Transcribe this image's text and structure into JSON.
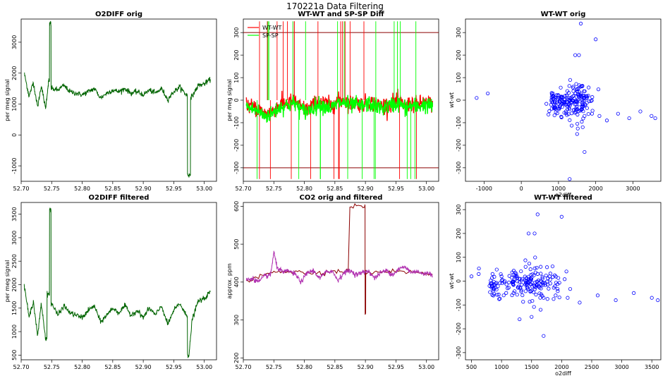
{
  "figure": {
    "title": "170221a   Data Filtering"
  },
  "chart_data": [
    {
      "id": "p1",
      "type": "line",
      "title": "O2DIFF orig",
      "xlabel": "",
      "ylabel": "per meg signal",
      "xlim": [
        52.7,
        53.02
      ],
      "ylim": [
        -1500,
        3750
      ],
      "xticks": [
        "52.70",
        "52.75",
        "52.80",
        "52.85",
        "52.90",
        "52.95",
        "53.00"
      ],
      "xtick_values": [
        52.7,
        52.75,
        52.8,
        52.85,
        52.9,
        52.95,
        53.0
      ],
      "yticks": [
        "-1000",
        "0",
        "1000",
        "2000",
        "3000"
      ],
      "ytick_values": [
        -1000,
        0,
        1000,
        2000,
        3000
      ],
      "color": "#006400",
      "series": [
        {
          "x": [
            52.705,
            52.713,
            52.72,
            52.727,
            52.733,
            52.74,
            52.745,
            52.748,
            52.75,
            52.76,
            52.77,
            52.78,
            52.79,
            52.8,
            52.81,
            52.82,
            52.83,
            52.84,
            52.85,
            52.86,
            52.87,
            52.88,
            52.89,
            52.9,
            52.91,
            52.92,
            52.93,
            52.94,
            52.95,
            52.96,
            52.97,
            52.975,
            52.98,
            52.99,
            53.0,
            53.01
          ],
          "y": [
            2000,
            1250,
            1700,
            900,
            1600,
            850,
            1750,
            3600,
            1500,
            1450,
            1600,
            1400,
            1350,
            1300,
            1400,
            1500,
            1200,
            1350,
            1450,
            1400,
            1500,
            1350,
            1400,
            1300,
            1450,
            1350,
            1500,
            1150,
            1400,
            1550,
            1300,
            -1300,
            1250,
            1600,
            1650,
            1800
          ]
        }
      ]
    },
    {
      "id": "p2",
      "type": "line",
      "title": "WT-WT and SP-SP Diff",
      "xlabel": "",
      "ylabel": "per meg signal",
      "xlim": [
        52.7,
        53.02
      ],
      "ylim": [
        -360,
        360
      ],
      "xticks": [
        "52.70",
        "52.75",
        "52.80",
        "52.85",
        "52.90",
        "52.95",
        "53.00"
      ],
      "xtick_values": [
        52.7,
        52.75,
        52.8,
        52.85,
        52.9,
        52.95,
        53.0
      ],
      "yticks": [
        "-300",
        "-200",
        "-100",
        "0",
        "100",
        "200",
        "300"
      ],
      "ytick_values": [
        -300,
        -200,
        -100,
        0,
        100,
        200,
        300
      ],
      "hlines": [
        300,
        -300
      ],
      "hline_color": "#8b0000",
      "legend": [
        {
          "label": "WT-WT",
          "color": "#ff0000"
        },
        {
          "label": "SP-SP",
          "color": "#00ff00"
        }
      ],
      "series": [
        {
          "name": "WT-WT",
          "color": "#ff0000",
          "x": [
            52.705,
            52.715,
            52.725,
            52.735,
            52.745,
            52.755,
            52.765,
            52.775,
            52.785,
            52.795,
            52.805,
            52.815,
            52.825,
            52.835,
            52.845,
            52.855,
            52.865,
            52.875,
            52.885,
            52.895,
            52.905,
            52.915,
            52.925,
            52.935,
            52.945,
            52.955,
            52.965,
            52.975,
            52.985,
            52.995,
            53.005,
            53.01
          ],
          "y": [
            -20,
            -30,
            -40,
            -60,
            -55,
            -30,
            -15,
            -10,
            -5,
            -35,
            -40,
            -20,
            -10,
            -15,
            -25,
            -5,
            0,
            -15,
            -10,
            -20,
            -5,
            -15,
            -25,
            -20,
            -10,
            -5,
            -25,
            -15,
            -20,
            -10,
            -15,
            -20
          ]
        },
        {
          "name": "SP-SP",
          "color": "#00ff00",
          "x": [
            52.705,
            52.715,
            52.725,
            52.735,
            52.745,
            52.755,
            52.765,
            52.775,
            52.785,
            52.795,
            52.805,
            52.815,
            52.825,
            52.835,
            52.845,
            52.855,
            52.865,
            52.875,
            52.885,
            52.895,
            52.905,
            52.915,
            52.925,
            52.935,
            52.945,
            52.955,
            52.965,
            52.975,
            52.985,
            52.995,
            53.005,
            53.01
          ],
          "y": [
            -30,
            -40,
            -50,
            -70,
            -65,
            -40,
            -25,
            -20,
            -15,
            -45,
            -50,
            -30,
            -20,
            -25,
            -35,
            -15,
            -10,
            -25,
            -20,
            -30,
            -15,
            -25,
            -35,
            -30,
            -20,
            -15,
            -35,
            -25,
            -30,
            -20,
            -25,
            -30
          ]
        }
      ]
    },
    {
      "id": "p3",
      "type": "scatter",
      "title": "WT-WT orig",
      "xlabel": "o2diff",
      "ylabel": "wt-wt",
      "xlim": [
        -1500,
        3750
      ],
      "ylim": [
        -360,
        360
      ],
      "xticks": [
        "-1000",
        "0",
        "1000",
        "2000",
        "3000"
      ],
      "xtick_values": [
        -1000,
        0,
        1000,
        2000,
        3000
      ],
      "yticks": [
        "-300",
        "-200",
        "-100",
        "0",
        "100",
        "200",
        "300"
      ],
      "ytick_values": [
        -300,
        -200,
        -100,
        0,
        100,
        200,
        300
      ],
      "color": "#0000ff",
      "points": {
        "x": [
          -1200,
          -900,
          800,
          850,
          900,
          1000,
          1100,
          1200,
          1300,
          1400,
          1500,
          1600,
          1700,
          1800,
          1900,
          2100,
          2300,
          2600,
          2900,
          3200,
          3500,
          3600,
          1600,
          1550,
          1450,
          1700,
          1300,
          1500,
          1650,
          2000
        ],
        "y": [
          10,
          30,
          -20,
          30,
          -10,
          20,
          -30,
          -50,
          10,
          60,
          -40,
          30,
          -70,
          20,
          -60,
          -70,
          -90,
          -60,
          -80,
          -50,
          -70,
          -80,
          340,
          200,
          200,
          -230,
          -350,
          -150,
          -120,
          270
        ]
      },
      "clusters": [
        {
          "cx": 1200,
          "cy": -10,
          "sx": 200,
          "sy": 30,
          "n": 80
        },
        {
          "cx": 1600,
          "cy": 0,
          "sx": 180,
          "sy": 40,
          "n": 80
        },
        {
          "cx": 900,
          "cy": -20,
          "sx": 60,
          "sy": 25,
          "n": 25
        }
      ]
    },
    {
      "id": "p4",
      "type": "line",
      "title": "O2DIFF filtered",
      "xlabel": "",
      "ylabel": "per meg signal",
      "xlim": [
        52.7,
        53.02
      ],
      "ylim": [
        400,
        3750
      ],
      "xticks": [
        "52.70",
        "52.75",
        "52.80",
        "52.85",
        "52.90",
        "52.95",
        "53.00"
      ],
      "xtick_values": [
        52.7,
        52.75,
        52.8,
        52.85,
        52.9,
        52.95,
        53.0
      ],
      "yticks": [
        "500",
        "1000",
        "1500",
        "2000",
        "2500",
        "3000",
        "3500"
      ],
      "ytick_values": [
        500,
        1000,
        1500,
        2000,
        2500,
        3000,
        3500
      ],
      "color": "#006400",
      "series": [
        {
          "x": [
            52.705,
            52.713,
            52.72,
            52.727,
            52.733,
            52.74,
            52.745,
            52.748,
            52.75,
            52.76,
            52.77,
            52.78,
            52.79,
            52.8,
            52.81,
            52.82,
            52.83,
            52.84,
            52.85,
            52.86,
            52.87,
            52.88,
            52.89,
            52.9,
            52.91,
            52.92,
            52.93,
            52.94,
            52.95,
            52.96,
            52.97,
            52.975,
            52.98,
            52.99,
            53.0,
            53.01
          ],
          "y": [
            2000,
            1300,
            1650,
            900,
            1600,
            850,
            1800,
            3600,
            1600,
            1350,
            1550,
            1400,
            1350,
            1300,
            1450,
            1550,
            1200,
            1350,
            1500,
            1400,
            1550,
            1350,
            1450,
            1300,
            1500,
            1350,
            1550,
            1150,
            1450,
            1600,
            1350,
            500,
            1250,
            1650,
            1700,
            1850
          ]
        }
      ]
    },
    {
      "id": "p5",
      "type": "line",
      "title": "CO2 orig and filtered",
      "xlabel": "",
      "ylabel": "approx. ppm",
      "xlim": [
        52.7,
        53.02
      ],
      "ylim": [
        195,
        610
      ],
      "xticks": [
        "52.70",
        "52.75",
        "52.80",
        "52.85",
        "52.90",
        "52.95",
        "53.00"
      ],
      "xtick_values": [
        52.7,
        52.75,
        52.8,
        52.85,
        52.9,
        52.95,
        53.0
      ],
      "yticks": [
        "200",
        "300",
        "400",
        "500",
        "600"
      ],
      "ytick_values": [
        200,
        300,
        400,
        500,
        600
      ],
      "series": [
        {
          "name": "",
          "color": "#8b0000",
          "x": [
            52.705,
            52.75,
            52.8,
            52.85,
            52.899,
            52.9,
            52.901,
            52.95,
            53.01
          ],
          "y": [
            400,
            430,
            425,
            428,
            600,
            320,
            425,
            430,
            420
          ]
        },
        {
          "name": "",
          "color": "#b030b0",
          "x": [
            52.705,
            52.715,
            52.725,
            52.735,
            52.745,
            52.75,
            52.755,
            52.765,
            52.775,
            52.785,
            52.795,
            52.805,
            52.815,
            52.825,
            52.835,
            52.845,
            52.855,
            52.865,
            52.875,
            52.885,
            52.895,
            52.905,
            52.915,
            52.925,
            52.935,
            52.945,
            52.955,
            52.965,
            52.975,
            52.985,
            52.995,
            53.005,
            53.01
          ],
          "y": [
            405,
            410,
            400,
            415,
            420,
            480,
            440,
            425,
            430,
            420,
            400,
            425,
            430,
            410,
            425,
            430,
            405,
            425,
            430,
            420,
            425,
            430,
            410,
            425,
            430,
            420,
            435,
            440,
            425,
            430,
            420,
            425,
            415
          ]
        }
      ]
    },
    {
      "id": "p6",
      "type": "scatter",
      "title": "WT-WT filtered",
      "xlabel": "o2diff",
      "ylabel": "wt-wt",
      "xlim": [
        400,
        3650
      ],
      "ylim": [
        -330,
        330
      ],
      "xticks": [
        "500",
        "1000",
        "1500",
        "2000",
        "2500",
        "3000",
        "3500"
      ],
      "xtick_values": [
        500,
        1000,
        1500,
        2000,
        2500,
        3000,
        3500
      ],
      "yticks": [
        "-300",
        "-200",
        "-100",
        "0",
        "100",
        "200",
        "300"
      ],
      "ytick_values": [
        -300,
        -200,
        -100,
        0,
        100,
        200,
        300
      ],
      "color": "#0000ff",
      "points": {
        "x": [
          500,
          620,
          800,
          850,
          900,
          1000,
          1100,
          1200,
          1300,
          1400,
          1500,
          1600,
          1700,
          1800,
          1900,
          2100,
          2300,
          2600,
          2900,
          3200,
          3500,
          3600,
          1600,
          1550,
          1450,
          1700,
          1300,
          1500,
          1650,
          2000
        ],
        "y": [
          20,
          30,
          -20,
          30,
          -10,
          20,
          -30,
          -50,
          10,
          60,
          -40,
          30,
          -70,
          20,
          -60,
          -70,
          -90,
          -60,
          -80,
          -50,
          -70,
          -80,
          280,
          200,
          200,
          -230,
          -160,
          -150,
          -120,
          270
        ]
      },
      "clusters": [
        {
          "cx": 1300,
          "cy": -10,
          "sx": 200,
          "sy": 30,
          "n": 80
        },
        {
          "cx": 1650,
          "cy": 0,
          "sx": 180,
          "sy": 40,
          "n": 80
        },
        {
          "cx": 850,
          "cy": -20,
          "sx": 50,
          "sy": 25,
          "n": 25
        }
      ]
    }
  ]
}
